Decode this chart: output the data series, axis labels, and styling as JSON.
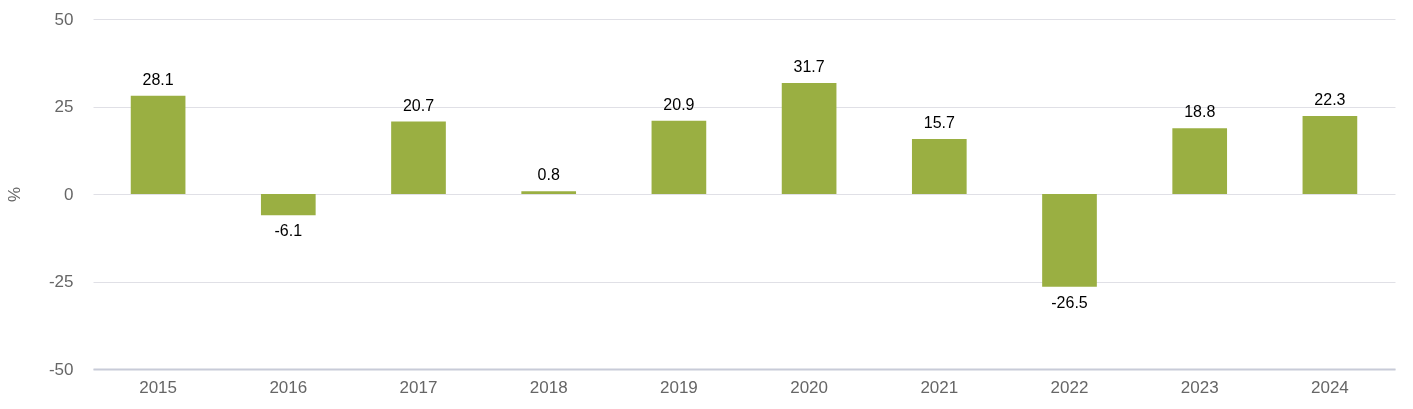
{
  "chart_data": {
    "type": "bar",
    "ylabel": "%",
    "categories": [
      "2015",
      "2016",
      "2017",
      "2018",
      "2019",
      "2020",
      "2021",
      "2022",
      "2023",
      "2024"
    ],
    "values": [
      28.1,
      -6.1,
      20.7,
      0.8,
      20.9,
      31.7,
      15.7,
      -26.5,
      18.8,
      22.3
    ],
    "color": "#9aaf42",
    "ylim": [
      -50,
      50
    ],
    "yticks": [
      -50,
      -25,
      0,
      25,
      50
    ],
    "grid": "y",
    "data_labels": true
  }
}
